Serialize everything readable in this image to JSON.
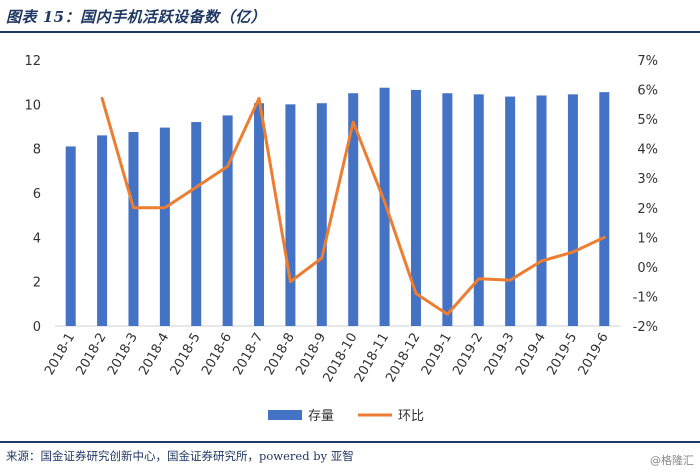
{
  "header": {
    "title": "图表 15：国内手机活跃设备数（亿）"
  },
  "footer": {
    "source": "来源：国金证券研究创新中心，国金证券研究所，powered by 亚智",
    "watermark": "@格隆汇"
  },
  "colors": {
    "bar": "#4472c4",
    "line": "#ed7d31",
    "rule": "#1f3864"
  },
  "chart_data": {
    "type": "bar",
    "title": "",
    "xlabel": "",
    "ylabel": "",
    "categories": [
      "2018-1",
      "2018-2",
      "2018-3",
      "2018-4",
      "2018-5",
      "2018-6",
      "2018-7",
      "2018-8",
      "2018-9",
      "2018-10",
      "2018-11",
      "2018-12",
      "2019-1",
      "2019-2",
      "2019-3",
      "2019-4",
      "2019-5",
      "2019-6"
    ],
    "ylim": [
      0,
      12
    ],
    "y_ticks": [
      "0",
      "2",
      "4",
      "6",
      "8",
      "10",
      "12"
    ],
    "y2lim": [
      -0.02,
      0.07
    ],
    "y2_ticks": [
      "-2%",
      "-1%",
      "0%",
      "1%",
      "2%",
      "3%",
      "4%",
      "5%",
      "6%",
      "7%"
    ],
    "grid": false,
    "legend_position": "bottom",
    "series": [
      {
        "name": "存量",
        "kind": "bar",
        "axis": "left",
        "values": [
          8.1,
          8.6,
          8.75,
          8.95,
          9.2,
          9.5,
          10.05,
          10.0,
          10.05,
          10.5,
          10.75,
          10.65,
          10.5,
          10.45,
          10.35,
          10.4,
          10.45,
          10.55
        ]
      },
      {
        "name": "环比",
        "kind": "line",
        "axis": "right",
        "values": [
          null,
          0.057,
          0.02,
          0.02,
          0.027,
          0.034,
          0.057,
          -0.005,
          0.003,
          0.049,
          0.022,
          -0.009,
          -0.016,
          -0.004,
          -0.0045,
          0.002,
          0.005,
          0.01
        ]
      }
    ]
  }
}
